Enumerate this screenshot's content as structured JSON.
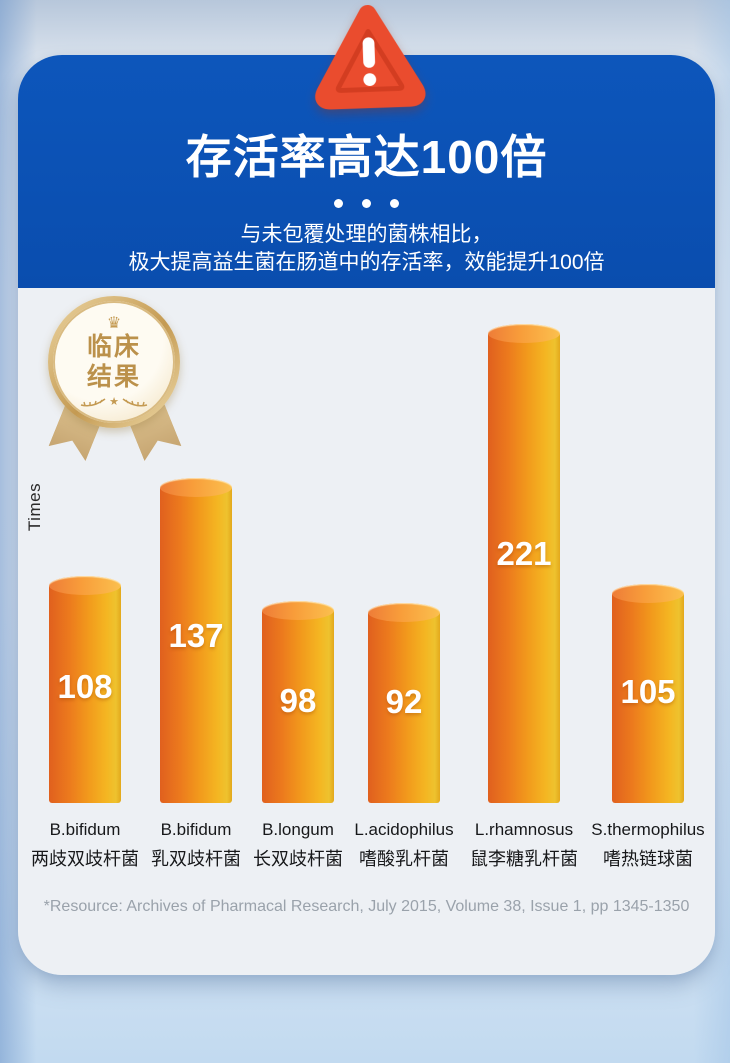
{
  "page": {
    "title": "存活率高达100倍",
    "subtitle_line1": "与未包覆处理的菌株相比，",
    "subtitle_line2": "极大提高益生菌在肠道中的存活率，效能提升100倍"
  },
  "badge": {
    "crown_icon": "♛",
    "line1": "临床",
    "line2": "结果",
    "star_icon": "★"
  },
  "chart_data": {
    "type": "bar",
    "title": "存活率高达100倍",
    "subtitle": "与未包覆处理的菌株相比，极大提高益生菌在肠道中的存活率，效能提升100倍",
    "ylabel": "Times",
    "xlabel": "",
    "categories": [
      "B.bifidum",
      "B.bifidum",
      "B.longum",
      "L.acidophilus",
      "L.rhamnosus",
      "S.thermophilus"
    ],
    "categories_zh": [
      "两歧双歧杆菌",
      "乳双歧杆菌",
      "长双歧杆菌",
      "嗜酸乳杆菌",
      "鼠李糖乳杆菌",
      "嗜热链球菌"
    ],
    "values": [
      108,
      137,
      98,
      92,
      221,
      105
    ],
    "unit": "Times",
    "data_labels": true,
    "grid": false,
    "legend": "none",
    "bar_style": "3d-cylinder",
    "bar_color_left": "#e0601e",
    "bar_color_right": "#f2bb24"
  },
  "footer": {
    "source": "*Resource: Archives of Pharmacal Research, July 2015, Volume 38, Issue 1, pp 1345-1350"
  },
  "colors": {
    "header_blue": "#0b51b3",
    "panel_gray": "#edf0f4",
    "warning_red": "#ea4c2e",
    "warning_red_dark": "#cf3b1f",
    "badge_gold": "#c49a52",
    "value_text": "#ffffff",
    "label_text": "#17181a",
    "source_text": "#9aa2ab"
  }
}
